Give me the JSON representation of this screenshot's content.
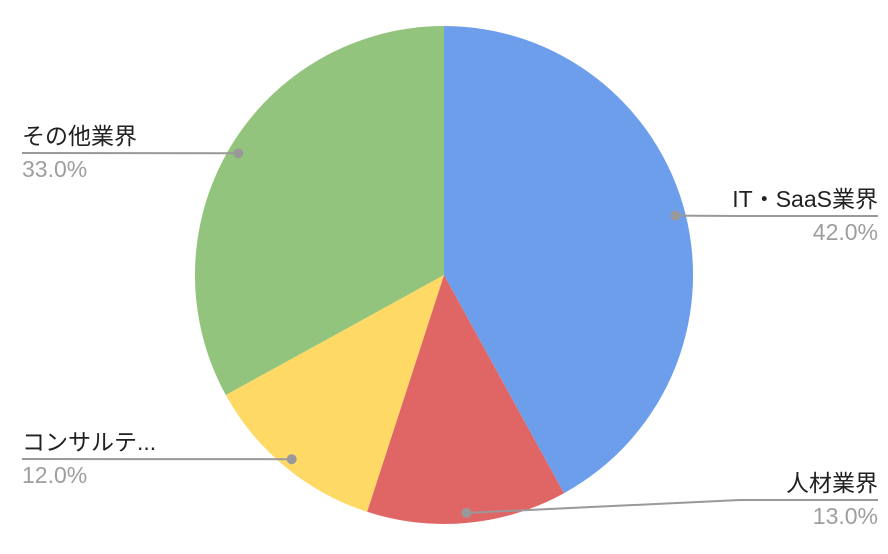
{
  "chart_data": {
    "type": "pie",
    "title": "",
    "direction": "clockwise",
    "start_angle_deg": 0,
    "legend_position": "none",
    "labels_style": "outside-callouts",
    "slices": [
      {
        "label": "IT・SaaS業界",
        "value": 42.0,
        "pct_label": "42.0%",
        "color": "#6d9eeb"
      },
      {
        "label": "人材業界",
        "value": 13.0,
        "pct_label": "13.0%",
        "color": "#e06666"
      },
      {
        "label": "コンサルテ...",
        "value": 12.0,
        "pct_label": "12.0%",
        "color": "#ffd966"
      },
      {
        "label": "その他業界",
        "value": 33.0,
        "pct_label": "33.0%",
        "color": "#93c47d"
      }
    ],
    "colors": {
      "leader_line": "#999999",
      "leader_dot": "#999999",
      "label_text": "#212121",
      "pct_text": "#9e9e9e",
      "background": "#ffffff"
    }
  }
}
